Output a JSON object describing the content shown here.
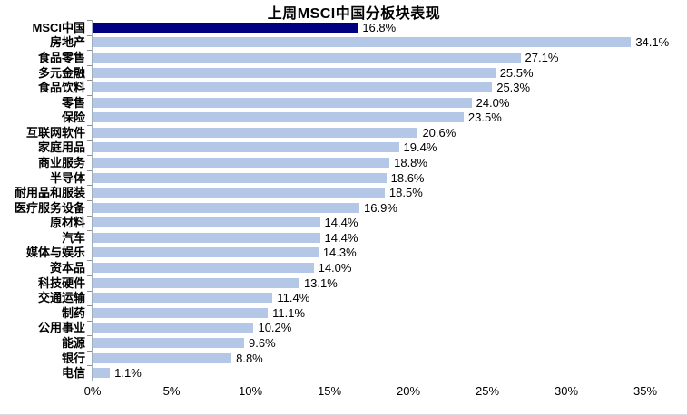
{
  "chart_data": {
    "type": "bar",
    "orientation": "horizontal",
    "title": "上周MSCI中国分板块表现",
    "categories": [
      "MSCI中国",
      "房地产",
      "食品零售",
      "多元金融",
      "食品饮料",
      "零售",
      "保险",
      "互联网软件",
      "家庭用品",
      "商业服务",
      "半导体",
      "耐用品和服装",
      "医疗服务设备",
      "原材料",
      "汽车",
      "媒体与娱乐",
      "资本品",
      "科技硬件",
      "交通运输",
      "制药",
      "公用事业",
      "能源",
      "银行",
      "电信"
    ],
    "values": [
      16.8,
      34.1,
      27.1,
      25.5,
      25.3,
      24.0,
      23.5,
      20.6,
      19.4,
      18.8,
      18.6,
      18.5,
      16.9,
      14.4,
      14.4,
      14.3,
      14.0,
      13.1,
      11.4,
      11.1,
      10.2,
      9.6,
      8.8,
      1.1
    ],
    "value_labels": [
      "16.8%",
      "34.1%",
      "27.1%",
      "25.5%",
      "25.3%",
      "24.0%",
      "23.5%",
      "20.6%",
      "19.4%",
      "18.8%",
      "18.6%",
      "18.5%",
      "16.9%",
      "14.4%",
      "14.4%",
      "14.3%",
      "14.0%",
      "13.1%",
      "11.4%",
      "11.1%",
      "10.2%",
      "9.6%",
      "8.8%",
      "1.1%"
    ],
    "x_tick_labels": [
      "0%",
      "5%",
      "10%",
      "15%",
      "20%",
      "25%",
      "30%",
      "35%"
    ],
    "x_tick_values": [
      0,
      5,
      10,
      15,
      20,
      25,
      30,
      35
    ],
    "xlim": [
      0,
      35
    ],
    "xlabel": "",
    "ylabel": "",
    "grid": "off",
    "legend": "none",
    "highlight_index": 0,
    "colors": {
      "highlight_bar": "#000080",
      "bar": "#B4C7E7",
      "axis_line": "#9FAFC2",
      "tick": "#8C8C8C",
      "text": "#000000"
    }
  }
}
